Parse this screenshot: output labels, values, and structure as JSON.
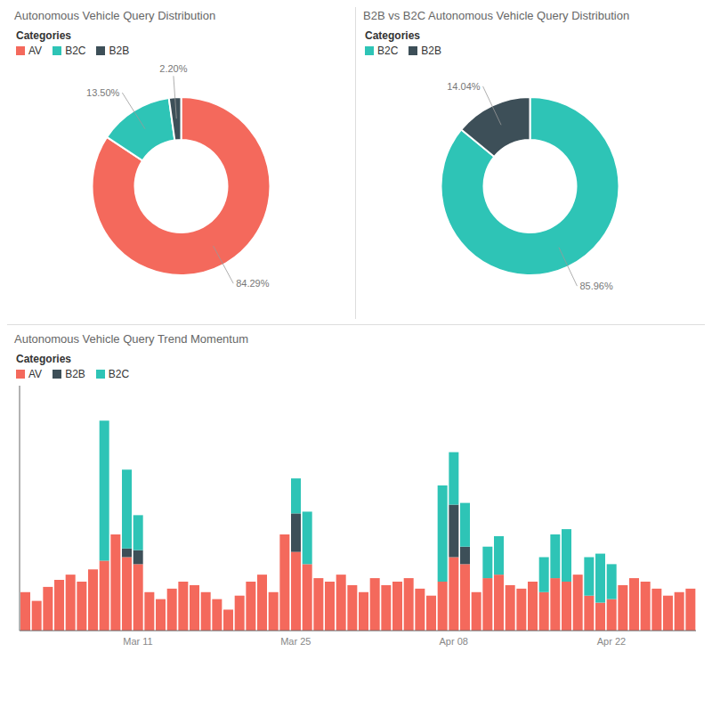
{
  "chart_data": [
    {
      "type": "pie",
      "title": "Autonomous Vehicle Query Distribution",
      "legend_title": "Categories",
      "legend": "upper left",
      "categories": [
        "AV",
        "B2C",
        "B2B"
      ],
      "values": [
        84.29,
        13.5,
        2.2
      ],
      "value_labels": [
        "84.29%",
        "13.50%",
        "2.20%"
      ],
      "colors": [
        "#F4695C",
        "#2EC4B6",
        "#3D4F58"
      ],
      "data_labels": true
    },
    {
      "type": "pie",
      "title": "B2B vs B2C Autonomous Vehicle Query Distribution",
      "legend_title": "Categories",
      "legend": "upper left",
      "categories": [
        "B2C",
        "B2B"
      ],
      "values": [
        85.96,
        14.04
      ],
      "value_labels": [
        "85.96%",
        "14.04%"
      ],
      "colors": [
        "#2EC4B6",
        "#3D4F58"
      ],
      "data_labels": true
    },
    {
      "type": "bar",
      "title": "Autonomous Vehicle Query Trend Momentum",
      "legend_title": "Categories",
      "legend": "upper left",
      "stacked": true,
      "grid": false,
      "tick_labels": "x",
      "ylim": [
        0,
        140
      ],
      "categories": [
        null,
        null,
        null,
        null,
        null,
        null,
        null,
        null,
        null,
        null,
        "Mar 11",
        null,
        null,
        null,
        null,
        null,
        null,
        null,
        null,
        null,
        null,
        null,
        null,
        null,
        "Mar 25",
        null,
        null,
        null,
        null,
        null,
        null,
        null,
        null,
        null,
        null,
        null,
        null,
        null,
        "Apr 08",
        null,
        null,
        null,
        null,
        null,
        null,
        null,
        null,
        null,
        null,
        null,
        null,
        null,
        "Apr 22",
        null,
        null,
        null,
        null,
        null,
        null,
        null
      ],
      "series": [
        {
          "name": "AV",
          "color": "#F4695C",
          "values": [
            22,
            17,
            25,
            29,
            32,
            28,
            35,
            40,
            55,
            42,
            38,
            22,
            18,
            24,
            28,
            26,
            22,
            18,
            12,
            20,
            28,
            32,
            22,
            55,
            45,
            38,
            30,
            28,
            32,
            26,
            22,
            30,
            26,
            28,
            30,
            24,
            20,
            28,
            42,
            38,
            22,
            30,
            32,
            26,
            24,
            28,
            22,
            30,
            28,
            32,
            20,
            16,
            18,
            26,
            30,
            28,
            24,
            20,
            22,
            24
          ]
        },
        {
          "name": "B2B",
          "color": "#3D4F58",
          "values": [
            0,
            0,
            0,
            0,
            0,
            0,
            0,
            0,
            0,
            5,
            8,
            0,
            0,
            0,
            0,
            0,
            0,
            0,
            0,
            0,
            0,
            0,
            0,
            0,
            22,
            0,
            0,
            0,
            0,
            0,
            0,
            0,
            0,
            0,
            0,
            0,
            0,
            0,
            30,
            10,
            0,
            0,
            0,
            0,
            0,
            0,
            0,
            0,
            0,
            0,
            0,
            0,
            0,
            0,
            0,
            0,
            0,
            0,
            0,
            0
          ]
        },
        {
          "name": "B2C",
          "color": "#2EC4B6",
          "values": [
            0,
            0,
            0,
            0,
            0,
            0,
            0,
            80,
            0,
            45,
            20,
            0,
            0,
            0,
            0,
            0,
            0,
            0,
            0,
            0,
            0,
            0,
            0,
            0,
            20,
            30,
            0,
            0,
            0,
            0,
            0,
            0,
            0,
            0,
            0,
            0,
            0,
            55,
            30,
            25,
            0,
            18,
            22,
            0,
            0,
            0,
            20,
            25,
            30,
            0,
            22,
            28,
            20,
            0,
            0,
            0,
            0,
            0,
            0,
            0
          ]
        }
      ]
    }
  ]
}
